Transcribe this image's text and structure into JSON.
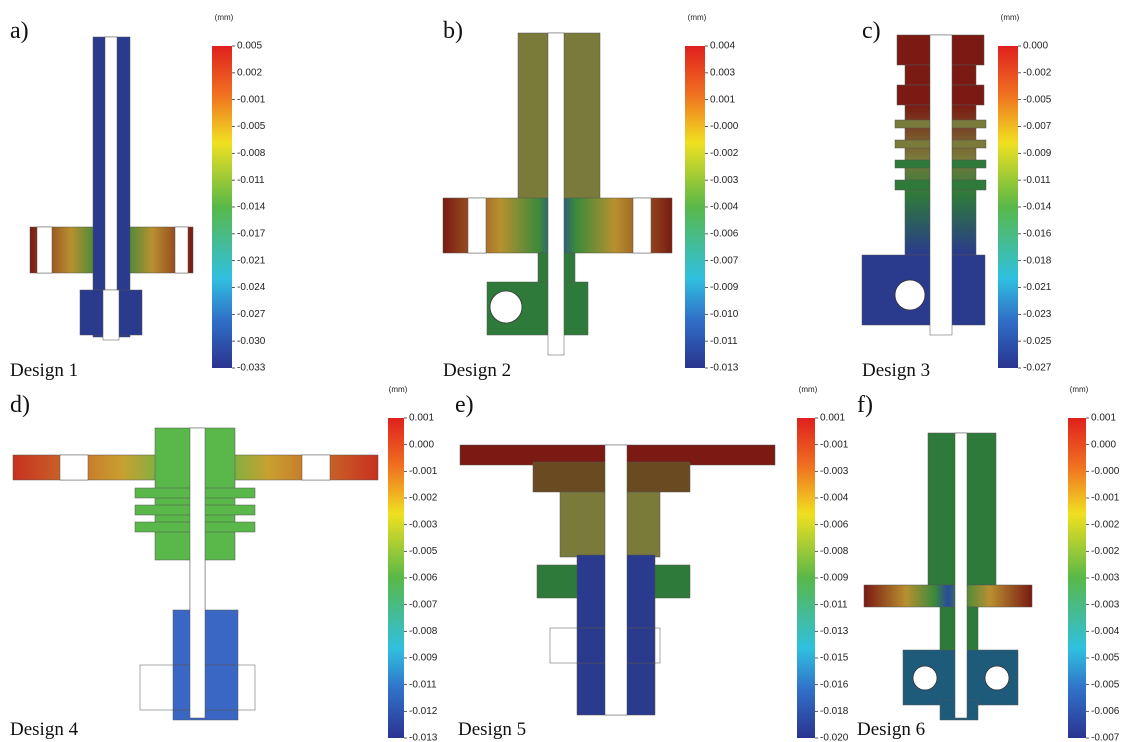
{
  "panels": [
    {
      "label": "a)",
      "design": "Design 1",
      "unit": "(mm)",
      "ticks": [
        "0.005",
        "0.002",
        "-0.001",
        "-0.005",
        "-0.008",
        "-0.011",
        "-0.014",
        "-0.017",
        "-0.021",
        "-0.024",
        "-0.027",
        "-0.030",
        "-0.033"
      ]
    },
    {
      "label": "b)",
      "design": "Design 2",
      "unit": "(mm)",
      "ticks": [
        "0.004",
        "0.003",
        "0.001",
        "-0.000",
        "-0.002",
        "-0.003",
        "-0.004",
        "-0.006",
        "-0.007",
        "-0.009",
        "-0.010",
        "-0.011",
        "-0.013"
      ]
    },
    {
      "label": "c)",
      "design": "Design 3",
      "unit": "(mm)",
      "ticks": [
        "0.000",
        "-0.002",
        "-0.005",
        "-0.007",
        "-0.009",
        "-0.011",
        "-0.014",
        "-0.016",
        "-0.018",
        "-0.021",
        "-0.023",
        "-0.025",
        "-0.027"
      ]
    },
    {
      "label": "d)",
      "design": "Design 4",
      "unit": "(mm)",
      "ticks": [
        "0.001",
        "0.000",
        "-0.001",
        "-0.002",
        "-0.003",
        "-0.005",
        "-0.006",
        "-0.007",
        "-0.008",
        "-0.009",
        "-0.011",
        "-0.012",
        "-0.013"
      ]
    },
    {
      "label": "e)",
      "design": "Design 5",
      "unit": "(mm)",
      "ticks": [
        "0.001",
        "-0.001",
        "-0.003",
        "-0.004",
        "-0.006",
        "-0.008",
        "-0.009",
        "-0.011",
        "-0.013",
        "-0.015",
        "-0.016",
        "-0.018",
        "-0.020"
      ]
    },
    {
      "label": "f)",
      "design": "Design 6",
      "unit": "(mm)",
      "ticks": [
        "0.001",
        "0.000",
        "-0.000",
        "-0.001",
        "-0.002",
        "-0.002",
        "-0.003",
        "-0.003",
        "-0.004",
        "-0.005",
        "-0.005",
        "-0.006",
        "-0.007"
      ]
    }
  ]
}
